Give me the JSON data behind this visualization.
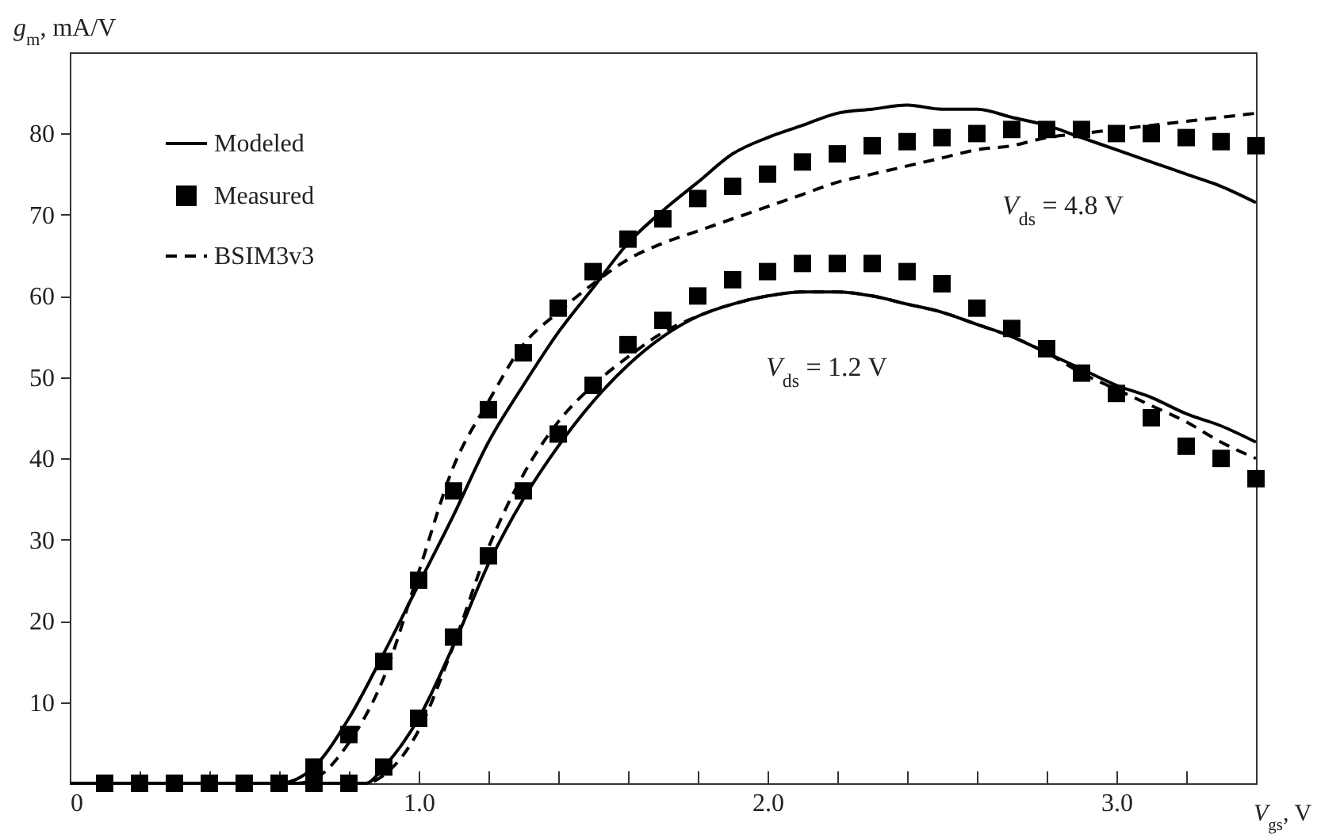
{
  "chart_data": {
    "type": "line",
    "xlabel": "V$_{gs}$, V",
    "ylabel": "g$_{m}$, mA/V",
    "xlim": [
      0,
      3.4
    ],
    "ylim": [
      0,
      90
    ],
    "xticks": [
      {
        "value": 0,
        "label": "0"
      },
      {
        "value": 0.2,
        "label": null
      },
      {
        "value": 0.4,
        "label": null
      },
      {
        "value": 0.6,
        "label": null
      },
      {
        "value": 0.8,
        "label": null
      },
      {
        "value": 1,
        "label": "1.0"
      },
      {
        "value": 1.2,
        "label": null
      },
      {
        "value": 1.4,
        "label": null
      },
      {
        "value": 1.6,
        "label": null
      },
      {
        "value": 1.8,
        "label": null
      },
      {
        "value": 2,
        "label": "2.0"
      },
      {
        "value": 2.2,
        "label": null
      },
      {
        "value": 2.4,
        "label": null
      },
      {
        "value": 2.6,
        "label": null
      },
      {
        "value": 2.8,
        "label": null
      },
      {
        "value": 3,
        "label": "3.0"
      },
      {
        "value": 3.2,
        "label": null
      }
    ],
    "yticks": [
      10,
      20,
      30,
      40,
      50,
      60,
      70,
      80
    ],
    "grid": false,
    "legend": "top left",
    "annotations": [
      "V$_{ds}$ = 4.8 V",
      "V$_{ds}$ = 1.2 V"
    ],
    "series": [
      {
        "name": "Modeled",
        "type": "line",
        "line_style": "solid",
        "color": "#000000",
        "x": [
          0,
          0.6,
          0.7,
          0.8,
          0.9,
          1.0,
          1.1,
          1.2,
          1.3,
          1.4,
          1.5,
          1.6,
          1.7,
          1.8,
          1.9,
          2.0,
          2.1,
          2.2,
          2.3,
          2.4,
          2.5,
          2.6,
          2.7,
          2.8,
          2.9,
          3.0,
          3.1,
          3.2,
          3.3,
          3.4
        ],
        "values": [
          0,
          0,
          2,
          8,
          16,
          24.5,
          33,
          42,
          49,
          55.5,
          61,
          66.5,
          70.5,
          74,
          77.5,
          79.5,
          81,
          82.5,
          83,
          83.5,
          83,
          83,
          82,
          81,
          79.5,
          78,
          76.5,
          75,
          73.5,
          71.5
        ]
      },
      {
        "name": "Measured",
        "type": "scatter",
        "marker": "square",
        "color": "#000000",
        "x": [
          0.1,
          0.2,
          0.3,
          0.4,
          0.5,
          0.6,
          0.7,
          0.8,
          0.9,
          1.0,
          1.1,
          1.2,
          1.3,
          1.4,
          1.5,
          1.6,
          1.7,
          1.8,
          1.9,
          2.0,
          2.1,
          2.2,
          2.3,
          2.4,
          2.5,
          2.6,
          2.7,
          2.8,
          2.9,
          3.0,
          3.1,
          3.2,
          3.3,
          3.4
        ],
        "values": [
          0,
          0,
          0,
          0,
          0,
          0,
          2,
          6,
          15,
          25,
          36,
          46,
          53,
          58.5,
          63,
          67,
          69.5,
          72,
          73.5,
          75,
          76.5,
          77.5,
          78.5,
          79,
          79.5,
          80,
          80.5,
          80.5,
          80.5,
          80,
          80,
          79.5,
          79,
          78.5
        ]
      },
      {
        "name": "BSIM3v3",
        "type": "line",
        "line_style": "dashed",
        "color": "#000000",
        "x": [
          0,
          0.65,
          0.7,
          0.8,
          0.9,
          1.0,
          1.1,
          1.2,
          1.3,
          1.4,
          1.5,
          1.6,
          1.7,
          1.8,
          1.9,
          2.0,
          2.1,
          2.2,
          2.3,
          2.4,
          2.5,
          2.6,
          2.7,
          2.8,
          2.9,
          3.0,
          3.1,
          3.2,
          3.3,
          3.4
        ],
        "values": [
          0,
          0,
          0.5,
          5,
          13,
          26,
          39,
          47,
          54,
          58,
          61.5,
          64.5,
          66.5,
          68,
          69.5,
          71,
          72.5,
          74,
          75,
          76,
          77,
          78,
          78.5,
          79.5,
          80,
          80.5,
          81,
          81.5,
          82,
          82.5
        ]
      },
      {
        "type": "line",
        "line_style": "solid",
        "color": "#000000",
        "x": [
          0,
          0.85,
          0.9,
          1.0,
          1.1,
          1.2,
          1.3,
          1.4,
          1.5,
          1.6,
          1.7,
          1.8,
          1.9,
          2.0,
          2.1,
          2.2,
          2.3,
          2.4,
          2.5,
          2.6,
          2.7,
          2.8,
          2.9,
          3.0,
          3.1,
          3.2,
          3.3,
          3.4
        ],
        "values": [
          0,
          0,
          2,
          8,
          17,
          27,
          35,
          41.5,
          47,
          51.5,
          55,
          57.5,
          59,
          60,
          60.5,
          60.5,
          60,
          59,
          58,
          56.5,
          55,
          53,
          51,
          49,
          47.5,
          45.5,
          44,
          42
        ]
      },
      {
        "type": "scatter",
        "marker": "square",
        "color": "#000000",
        "x": [
          0.7,
          0.8,
          0.9,
          1.0,
          1.1,
          1.2,
          1.3,
          1.4,
          1.5,
          1.6,
          1.7,
          1.8,
          1.9,
          2.0,
          2.1,
          2.2,
          2.3,
          2.4,
          2.5,
          2.6,
          2.7,
          2.8,
          2.9,
          3.0,
          3.1,
          3.2,
          3.3,
          3.4
        ],
        "values": [
          0,
          0,
          2,
          8,
          18,
          28,
          36,
          43,
          49,
          54,
          57,
          60,
          62,
          63,
          64,
          64,
          64,
          63,
          61.5,
          58.5,
          56,
          53.5,
          50.5,
          48,
          45,
          41.5,
          40,
          37.5
        ]
      },
      {
        "type": "line",
        "line_style": "dashed",
        "color": "#000000",
        "x": [
          0,
          0.85,
          0.9,
          1.0,
          1.1,
          1.2,
          1.3,
          1.4,
          1.5,
          1.6,
          1.7,
          1.8,
          1.9,
          2.0,
          2.1,
          2.2,
          2.3,
          2.4,
          2.5,
          2.6,
          2.7,
          2.8,
          2.9,
          3.0,
          3.1,
          3.2,
          3.3,
          3.4
        ],
        "values": [
          0,
          0,
          1,
          6.5,
          17,
          29,
          38,
          44.5,
          49,
          52.5,
          55.5,
          57.5,
          59,
          60,
          60.5,
          60.5,
          60,
          59,
          58,
          56.5,
          55,
          53,
          50.5,
          48.5,
          46.5,
          44.5,
          42,
          40
        ]
      }
    ]
  }
}
